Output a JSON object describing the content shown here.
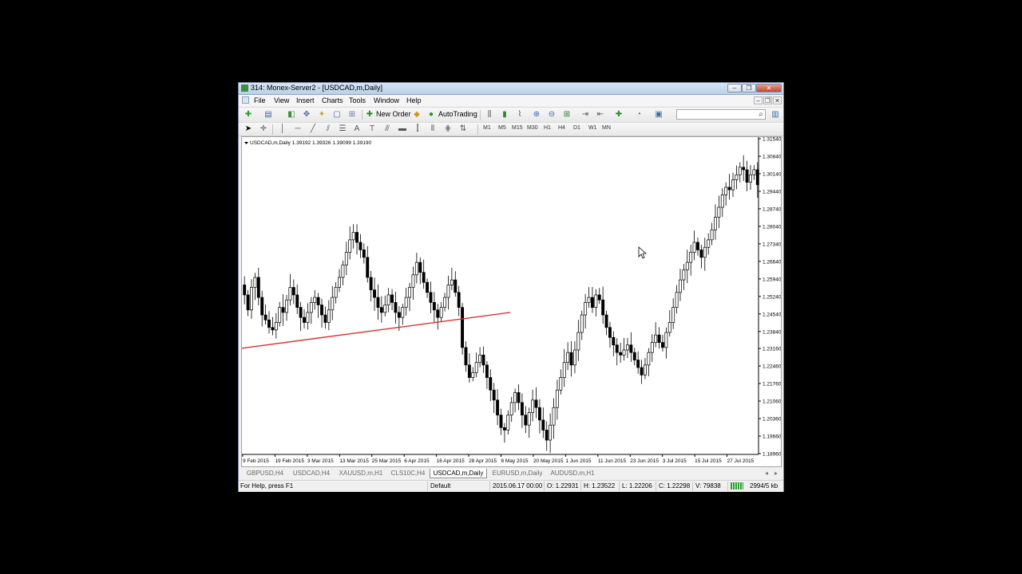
{
  "window": {
    "title": "314: Monex-Server2 - [USDCAD,m,Daily]",
    "controls": {
      "minimize": "‒",
      "restore": "❐",
      "close": "✕"
    }
  },
  "menu": {
    "items": [
      "File",
      "View",
      "Insert",
      "Charts",
      "Tools",
      "Window",
      "Help"
    ]
  },
  "toolbar": {
    "new_order_label": "New Order",
    "autotrading_label": "AutoTrading",
    "search_placeholder": "",
    "timeframes": [
      "M1",
      "M5",
      "M15",
      "M30",
      "H1",
      "H4",
      "D1",
      "W1",
      "MN"
    ]
  },
  "chart": {
    "info_line": "USDCAD,m,Daily  1.39192 1.39326 1.39099 1.39190",
    "colors": {
      "bull": "#ffffff",
      "bear": "#000000",
      "trendline": "#e03030"
    }
  },
  "chart_data": {
    "type": "candlestick",
    "symbol": "USDCAD,m",
    "timeframe": "Daily",
    "ylim": [
      1.1896,
      1.3154
    ],
    "y_ticks": [
      "1.31540",
      "1.30840",
      "1.30140",
      "1.29440",
      "1.28740",
      "1.28040",
      "1.27340",
      "1.26640",
      "1.25940",
      "1.25240",
      "1.24540",
      "1.23840",
      "1.23160",
      "1.22460",
      "1.21760",
      "1.21060",
      "1.20360",
      "1.19660",
      "1.18960"
    ],
    "x_ticks": [
      "9 Feb 2015",
      "19 Feb 2015",
      "3 Mar 2015",
      "13 Mar 2015",
      "25 Mar 2015",
      "6 Apr 2015",
      "16 Apr 2015",
      "28 Apr 2015",
      "8 May 2015",
      "20 May 2015",
      "1 Jun 2015",
      "11 Jun 2015",
      "23 Jun 2015",
      "3 Jul 2015",
      "15 Jul 2015",
      "27 Jul 2015"
    ],
    "close_path": [
      1.253,
      1.247,
      1.256,
      1.26,
      1.252,
      1.245,
      1.243,
      1.24,
      1.239,
      1.242,
      1.248,
      1.246,
      1.251,
      1.256,
      1.253,
      1.248,
      1.244,
      1.242,
      1.246,
      1.25,
      1.252,
      1.249,
      1.245,
      1.242,
      1.247,
      1.252,
      1.256,
      1.26,
      1.265,
      1.27,
      1.275,
      1.278,
      1.274,
      1.271,
      1.268,
      1.26,
      1.255,
      1.252,
      1.248,
      1.246,
      1.249,
      1.253,
      1.25,
      1.246,
      1.244,
      1.248,
      1.252,
      1.256,
      1.261,
      1.266,
      1.262,
      1.258,
      1.254,
      1.25,
      1.247,
      1.244,
      1.248,
      1.252,
      1.257,
      1.259,
      1.254,
      1.248,
      1.232,
      1.225,
      1.22,
      1.222,
      1.226,
      1.229,
      1.225,
      1.22,
      1.215,
      1.211,
      1.205,
      1.2,
      1.199,
      1.205,
      1.21,
      1.214,
      1.21,
      1.205,
      1.201,
      1.206,
      1.211,
      1.208,
      1.203,
      1.199,
      1.195,
      1.201,
      1.208,
      1.215,
      1.22,
      1.226,
      1.23,
      1.225,
      1.231,
      1.238,
      1.245,
      1.25,
      1.252,
      1.248,
      1.253,
      1.251,
      1.245,
      1.24,
      1.236,
      1.233,
      1.23,
      1.229,
      1.231,
      1.233,
      1.23,
      1.227,
      1.224,
      1.221,
      1.225,
      1.23,
      1.234,
      1.237,
      1.234,
      1.232,
      1.238,
      1.242,
      1.248,
      1.254,
      1.259,
      1.263,
      1.266,
      1.27,
      1.274,
      1.271,
      1.268,
      1.272,
      1.275,
      1.279,
      1.284,
      1.288,
      1.293,
      1.296,
      1.295,
      1.299,
      1.301,
      1.304,
      1.303,
      1.298,
      1.301,
      1.303,
      1.297
    ]
  },
  "tabs": [
    "GBPUSD,H4",
    "USDCAD,H4",
    "XAUUSD,m,H1",
    "CLS10C,H4",
    "USDCAD,m,Daily",
    "EURUSD,m,Daily",
    "AUDUSD,m,H1"
  ],
  "active_tab": "USDCAD,m,Daily",
  "status": {
    "help": "For Help, press F1",
    "profile": "Default",
    "datetime": "2015.06.17 00:00",
    "open": "O: 1.22931",
    "high": "H: 1.23522",
    "low": "L: 1.22206",
    "close": "C: 1.22298",
    "volume": "V: 79838",
    "traffic": "2994/5 kb"
  }
}
